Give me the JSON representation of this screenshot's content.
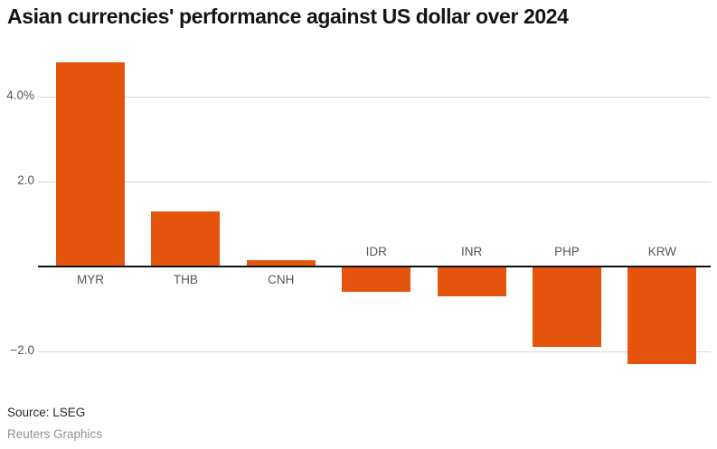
{
  "title": "Asian currencies' performance against US dollar over 2024",
  "source": "Source: LSEG",
  "credit": "Reuters Graphics",
  "colors": {
    "bar": "#E4540C",
    "gridline": "#D9D9D9",
    "zero_axis": "#111111",
    "tick_label": "#54565A",
    "category_label": "#54565A",
    "title": "#141414",
    "source": "#262626",
    "credit": "#8E9093"
  },
  "chart_data": {
    "type": "bar",
    "title": "Asian currencies' performance against US dollar over 2024",
    "categories": [
      "MYR",
      "THB",
      "CNH",
      "IDR",
      "INR",
      "PHP",
      "KRW"
    ],
    "values": [
      4.8,
      1.3,
      0.15,
      -0.6,
      -0.7,
      -1.9,
      -2.3
    ],
    "unit": "%",
    "xlabel": "",
    "ylabel": "",
    "ylim": [
      -2.6,
      5.0
    ],
    "yticks": [
      {
        "value": 4.0,
        "label": "4.0%"
      },
      {
        "value": 2.0,
        "label": "2.0"
      },
      {
        "value": -2.0,
        "label": "−2.0"
      }
    ],
    "zero_line": 0,
    "grid": true,
    "legend": false,
    "bar_color": "#E4540C",
    "label_placement": "positive bars labeled below axis, negative bars labeled above axis"
  }
}
